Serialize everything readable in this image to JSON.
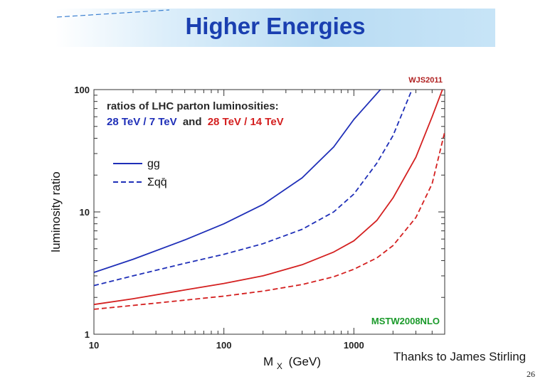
{
  "slide": {
    "title": "Higher Energies",
    "credit": "Thanks to James Stirling",
    "page_number": "26"
  },
  "colors": {
    "blue": "#1f2fb8",
    "red": "#d42020",
    "green": "#1a9a2a",
    "corner_label": "#b02020",
    "title": "#1a3fb0"
  },
  "chart_data": {
    "type": "line",
    "title": "ratios of LHC parton luminosities:",
    "subtitle_blue": "28 TeV / 7 TeV",
    "subtitle_and": "and",
    "subtitle_red": "28 TeV / 14 TeV",
    "corner_label": "WJS2011",
    "annotation": "MSTW2008NLO",
    "xlabel_main": "M",
    "xlabel_sub": "X",
    "xlabel_unit": "(GeV)",
    "ylabel": "luminosity ratio",
    "xscale": "log",
    "yscale": "log",
    "xlim": [
      10,
      5000
    ],
    "ylim": [
      1,
      100
    ],
    "x_ticks": [
      {
        "value": 10,
        "label": "10"
      },
      {
        "value": 100,
        "label": "100"
      },
      {
        "value": 1000,
        "label": "1000"
      }
    ],
    "y_ticks": [
      {
        "value": 1,
        "label": "1"
      },
      {
        "value": 10,
        "label": "10"
      },
      {
        "value": 100,
        "label": "100"
      }
    ],
    "legend": [
      {
        "label": "gg",
        "style": "solid"
      },
      {
        "label": "Σqq̄",
        "style": "dashed"
      }
    ],
    "series": [
      {
        "name": "gg 28 TeV / 7 TeV",
        "color": "blue",
        "style": "solid",
        "x": [
          10,
          20,
          50,
          100,
          200,
          400,
          700,
          1000,
          1600
        ],
        "y": [
          3.2,
          4.1,
          5.9,
          8.0,
          11.5,
          19,
          34,
          57,
          100
        ]
      },
      {
        "name": "qqbar 28 TeV / 7 TeV",
        "color": "blue",
        "style": "dashed",
        "x": [
          10,
          20,
          50,
          100,
          200,
          400,
          700,
          1000,
          1500,
          2000,
          2800
        ],
        "y": [
          2.5,
          3.0,
          3.8,
          4.5,
          5.5,
          7.2,
          10,
          14,
          25,
          42,
          100
        ]
      },
      {
        "name": "gg 28 TeV / 14 TeV",
        "color": "red",
        "style": "solid",
        "x": [
          10,
          20,
          50,
          100,
          200,
          400,
          700,
          1000,
          1500,
          2000,
          3000,
          4000,
          4800
        ],
        "y": [
          1.75,
          1.95,
          2.3,
          2.6,
          3.0,
          3.7,
          4.7,
          5.8,
          8.5,
          13,
          28,
          60,
          100
        ]
      },
      {
        "name": "qqbar 28 TeV / 14 TeV",
        "color": "red",
        "style": "dashed",
        "x": [
          10,
          20,
          50,
          100,
          200,
          400,
          700,
          1000,
          1500,
          2000,
          3000,
          4000,
          5000
        ],
        "y": [
          1.6,
          1.72,
          1.9,
          2.05,
          2.25,
          2.55,
          2.95,
          3.4,
          4.2,
          5.3,
          9.0,
          17,
          45
        ]
      }
    ]
  }
}
